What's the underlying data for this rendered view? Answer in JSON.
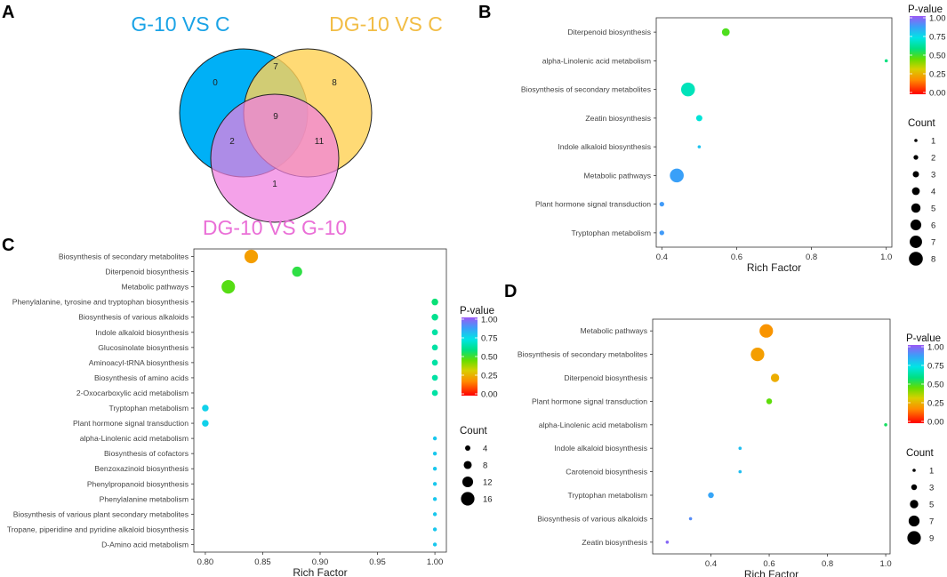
{
  "panel_labels": {
    "A": "A",
    "B": "B",
    "C": "C",
    "D": "D"
  },
  "colors": {
    "venn_blue": "#00b0f6",
    "venn_yellow": "#ffd257",
    "venn_pink": "#f07ee0",
    "title_blue": "#1aa3e6",
    "title_yellow": "#f2bd45",
    "title_pink": "#ea6fd7"
  },
  "venn": {
    "sets": [
      "G-10 VS C",
      "DG-10 VS C",
      "DG-10 VS G-10"
    ],
    "regions": {
      "g_only": "0",
      "dc_only": "8",
      "dg_only": "1",
      "g_dc": "7",
      "g_dg": "2",
      "dc_dg": "11",
      "all": "9"
    }
  },
  "chart_data": [
    {
      "panel": "B",
      "type": "scatter",
      "xlabel": "Rich Factor",
      "xlim": [
        0.385,
        1.015
      ],
      "xticks": [
        "0.4",
        "0.6",
        "0.8",
        "1.0"
      ],
      "terms": [
        "Diterpenoid biosynthesis",
        "alpha-Linolenic acid metabolism",
        "Biosynthesis of secondary metabolites",
        "Zeatin biosynthesis",
        "Indole alkaloid biosynthesis",
        "Metabolic pathways",
        "Plant hormone signal transduction",
        "Tryptophan metabolism"
      ],
      "rich_factor": [
        0.571,
        1.0,
        0.47,
        0.5,
        0.5,
        0.44,
        0.4,
        0.4
      ],
      "count": [
        4,
        1,
        8,
        3,
        1,
        8,
        2,
        2
      ],
      "p_value": [
        0.48,
        0.58,
        0.66,
        0.7,
        0.79,
        0.86,
        0.87,
        0.87
      ],
      "legend": {
        "p_title": "P-value",
        "p_ticks": [
          "1.00",
          "0.75",
          "0.50",
          "0.25",
          "0.00"
        ],
        "count_title": "Count",
        "counts": [
          "1",
          "2",
          "3",
          "4",
          "5",
          "6",
          "7",
          "8"
        ]
      }
    },
    {
      "panel": "C",
      "type": "scatter",
      "xlabel": "Rich Factor",
      "xlim": [
        0.79,
        1.01
      ],
      "xticks": [
        "0.80",
        "0.85",
        "0.90",
        "0.95",
        "1.00"
      ],
      "terms": [
        "Biosynthesis of secondary metabolites",
        "Diterpenoid biosynthesis",
        "Metabolic pathways",
        "Phenylalanine, tyrosine and tryptophan biosynthesis",
        "Biosynthesis of various alkaloids",
        "Indole alkaloid biosynthesis",
        "Glucosinolate biosynthesis",
        "Aminoacyl-tRNA biosynthesis",
        "Biosynthesis of amino acids",
        "2-Oxocarboxylic acid metabolism",
        "Tryptophan metabolism",
        "Plant hormone signal transduction",
        "alpha-Linolenic acid metabolism",
        "Biosynthesis of cofactors",
        "Benzoxazinoid biosynthesis",
        "Phenylpropanoid biosynthesis",
        "Phenylalanine metabolism",
        "Biosynthesis of various plant secondary metabolites",
        "Tropane, piperidine and pyridine alkaloid biosynthesis",
        "D-Amino acid metabolism"
      ],
      "rich_factor": [
        0.84,
        0.88,
        0.82,
        1.0,
        1.0,
        1.0,
        1.0,
        1.0,
        1.0,
        1.0,
        0.8,
        0.8,
        1.0,
        1.0,
        1.0,
        1.0,
        1.0,
        1.0,
        1.0,
        1.0
      ],
      "count": [
        16,
        11,
        16,
        6,
        6,
        5,
        5,
        5,
        5,
        5,
        6,
        6,
        2,
        2,
        2,
        2,
        2,
        2,
        2,
        2
      ],
      "p_value": [
        0.22,
        0.52,
        0.47,
        0.57,
        0.6,
        0.63,
        0.63,
        0.63,
        0.63,
        0.63,
        0.76,
        0.76,
        0.78,
        0.78,
        0.78,
        0.78,
        0.78,
        0.78,
        0.78,
        0.78
      ],
      "legend": {
        "p_title": "P-value",
        "p_ticks": [
          "1.00",
          "0.75",
          "0.50",
          "0.25",
          "0.00"
        ],
        "count_title": "Count",
        "counts": [
          "4",
          "8",
          "12",
          "16"
        ]
      }
    },
    {
      "panel": "D",
      "type": "scatter",
      "xlabel": "Rich Factor",
      "xlim": [
        0.2,
        1.015
      ],
      "xticks": [
        "0.4",
        "0.6",
        "0.8",
        "1.0"
      ],
      "terms": [
        "Metabolic pathways",
        "Biosynthesis of secondary metabolites",
        "Diterpenoid biosynthesis",
        "Plant hormone signal transduction",
        "alpha-Linolenic acid metabolism",
        "Indole alkaloid biosynthesis",
        "Carotenoid biosynthesis",
        "Tryptophan metabolism",
        "Biosynthesis of various alkaloids",
        "Zeatin biosynthesis"
      ],
      "rich_factor": [
        0.59,
        0.56,
        0.62,
        0.6,
        1.0,
        0.5,
        0.5,
        0.4,
        0.33,
        0.25
      ],
      "count": [
        9,
        9,
        5,
        3,
        1,
        1,
        1,
        3,
        1,
        1
      ],
      "p_value": [
        0.2,
        0.22,
        0.25,
        0.46,
        0.55,
        0.8,
        0.8,
        0.85,
        0.9,
        0.97
      ],
      "legend": {
        "p_title": "P-value",
        "p_ticks": [
          "1.00",
          "0.75",
          "0.50",
          "0.25",
          "0.00"
        ],
        "count_title": "Count",
        "counts": [
          "1",
          "3",
          "5",
          "7",
          "9"
        ]
      }
    }
  ]
}
